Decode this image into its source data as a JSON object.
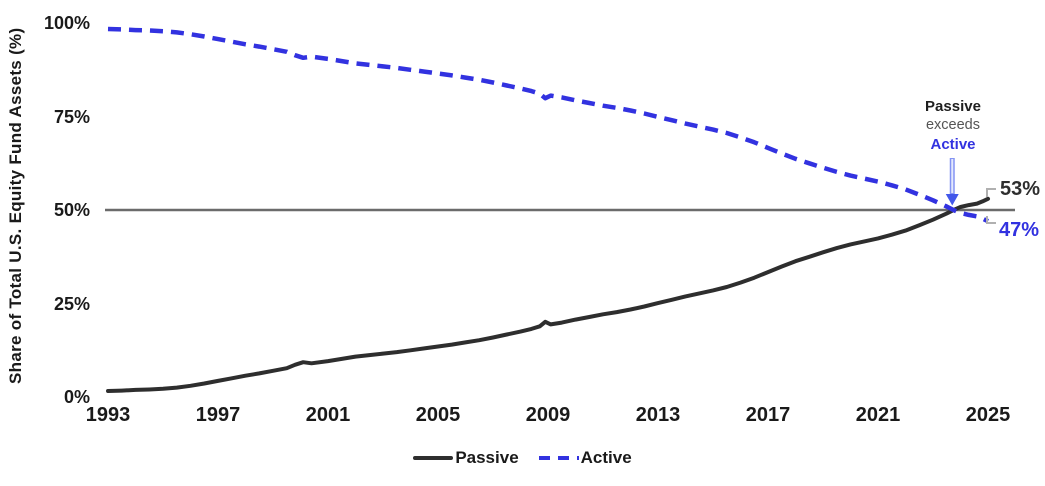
{
  "chart_data": {
    "type": "line",
    "title": "",
    "xlabel": "",
    "ylabel": "Share of Total U.S. Equity Fund Assets (%)",
    "x_tick_labels": [
      "1993",
      "1997",
      "2001",
      "2005",
      "2009",
      "2013",
      "2017",
      "2021",
      "2025"
    ],
    "x_tick_values": [
      1993,
      1997,
      2001,
      2005,
      2009,
      2013,
      2017,
      2021,
      2025
    ],
    "y_tick_labels": [
      "100%",
      "75%",
      "50%",
      "25%",
      "0%"
    ],
    "y_tick_values": [
      100,
      75,
      50,
      25,
      0
    ],
    "x_range": [
      1993,
      2025
    ],
    "y_range": [
      0,
      100
    ],
    "grid": "off",
    "reference_line_y": 50,
    "legend_position": "bottom-center",
    "crossover": {
      "year": 2023.7,
      "value": 50
    },
    "series": [
      {
        "name": "Passive",
        "style": "solid",
        "end_value_label": "53%",
        "points": [
          [
            1993,
            1.6
          ],
          [
            1993.5,
            1.7
          ],
          [
            1994,
            1.9
          ],
          [
            1994.5,
            2.0
          ],
          [
            1995,
            2.2
          ],
          [
            1995.5,
            2.5
          ],
          [
            1996,
            3.0
          ],
          [
            1996.5,
            3.6
          ],
          [
            1997,
            4.3
          ],
          [
            1997.5,
            5.0
          ],
          [
            1998,
            5.7
          ],
          [
            1998.5,
            6.3
          ],
          [
            1999,
            7.0
          ],
          [
            1999.5,
            7.7
          ],
          [
            1999.8,
            8.6
          ],
          [
            2000.1,
            9.3
          ],
          [
            2000.4,
            9.0
          ],
          [
            2001,
            9.6
          ],
          [
            2001.5,
            10.2
          ],
          [
            2002,
            10.8
          ],
          [
            2002.5,
            11.2
          ],
          [
            2003,
            11.6
          ],
          [
            2003.5,
            12.0
          ],
          [
            2004,
            12.5
          ],
          [
            2004.5,
            13.0
          ],
          [
            2005,
            13.5
          ],
          [
            2005.5,
            14.0
          ],
          [
            2006,
            14.6
          ],
          [
            2006.5,
            15.2
          ],
          [
            2007,
            15.9
          ],
          [
            2007.5,
            16.7
          ],
          [
            2008,
            17.5
          ],
          [
            2008.4,
            18.2
          ],
          [
            2008.7,
            18.9
          ],
          [
            2008.9,
            20.1
          ],
          [
            2009.1,
            19.4
          ],
          [
            2009.5,
            19.9
          ],
          [
            2010,
            20.7
          ],
          [
            2010.5,
            21.4
          ],
          [
            2011,
            22.1
          ],
          [
            2011.5,
            22.7
          ],
          [
            2012,
            23.4
          ],
          [
            2012.5,
            24.2
          ],
          [
            2013,
            25.1
          ],
          [
            2013.5,
            26.0
          ],
          [
            2014,
            26.9
          ],
          [
            2014.5,
            27.7
          ],
          [
            2015,
            28.5
          ],
          [
            2015.5,
            29.4
          ],
          [
            2016,
            30.6
          ],
          [
            2016.5,
            31.9
          ],
          [
            2017,
            33.4
          ],
          [
            2017.5,
            34.9
          ],
          [
            2018,
            36.3
          ],
          [
            2018.5,
            37.5
          ],
          [
            2019,
            38.7
          ],
          [
            2019.5,
            39.8
          ],
          [
            2020,
            40.8
          ],
          [
            2020.5,
            41.6
          ],
          [
            2021,
            42.4
          ],
          [
            2021.5,
            43.4
          ],
          [
            2022,
            44.5
          ],
          [
            2022.5,
            45.9
          ],
          [
            2023,
            47.4
          ],
          [
            2023.5,
            49.1
          ],
          [
            2023.8,
            50.2
          ],
          [
            2024,
            50.8
          ],
          [
            2024.3,
            51.3
          ],
          [
            2024.6,
            51.7
          ],
          [
            2024.8,
            52.3
          ],
          [
            2025,
            53.0
          ]
        ]
      },
      {
        "name": "Active",
        "style": "dashed",
        "end_value_label": "47%",
        "points": [
          [
            1993,
            98.4
          ],
          [
            1993.5,
            98.3
          ],
          [
            1994,
            98.1
          ],
          [
            1994.5,
            98.0
          ],
          [
            1995,
            97.8
          ],
          [
            1995.5,
            97.5
          ],
          [
            1996,
            97.0
          ],
          [
            1996.5,
            96.4
          ],
          [
            1997,
            95.7
          ],
          [
            1997.5,
            95.0
          ],
          [
            1998,
            94.3
          ],
          [
            1998.5,
            93.7
          ],
          [
            1999,
            93.0
          ],
          [
            1999.5,
            92.3
          ],
          [
            1999.8,
            91.4
          ],
          [
            2000.1,
            90.7
          ],
          [
            2000.4,
            91.0
          ],
          [
            2001,
            90.4
          ],
          [
            2001.5,
            89.8
          ],
          [
            2002,
            89.2
          ],
          [
            2002.5,
            88.8
          ],
          [
            2003,
            88.4
          ],
          [
            2003.5,
            88.0
          ],
          [
            2004,
            87.5
          ],
          [
            2004.5,
            87.0
          ],
          [
            2005,
            86.5
          ],
          [
            2005.5,
            86.0
          ],
          [
            2006,
            85.4
          ],
          [
            2006.5,
            84.8
          ],
          [
            2007,
            84.1
          ],
          [
            2007.5,
            83.3
          ],
          [
            2008,
            82.5
          ],
          [
            2008.4,
            81.8
          ],
          [
            2008.7,
            81.1
          ],
          [
            2008.9,
            79.9
          ],
          [
            2009.1,
            80.6
          ],
          [
            2009.5,
            80.1
          ],
          [
            2010,
            79.3
          ],
          [
            2010.5,
            78.6
          ],
          [
            2011,
            77.9
          ],
          [
            2011.5,
            77.3
          ],
          [
            2012,
            76.6
          ],
          [
            2012.5,
            75.8
          ],
          [
            2013,
            74.9
          ],
          [
            2013.5,
            74.0
          ],
          [
            2014,
            73.1
          ],
          [
            2014.5,
            72.3
          ],
          [
            2015,
            71.5
          ],
          [
            2015.5,
            70.6
          ],
          [
            2016,
            69.4
          ],
          [
            2016.5,
            68.1
          ],
          [
            2017,
            66.6
          ],
          [
            2017.5,
            65.1
          ],
          [
            2018,
            63.7
          ],
          [
            2018.5,
            62.5
          ],
          [
            2019,
            61.3
          ],
          [
            2019.5,
            60.2
          ],
          [
            2020,
            59.2
          ],
          [
            2020.5,
            58.4
          ],
          [
            2021,
            57.6
          ],
          [
            2021.5,
            56.6
          ],
          [
            2022,
            55.5
          ],
          [
            2022.5,
            54.1
          ],
          [
            2023,
            52.6
          ],
          [
            2023.5,
            50.9
          ],
          [
            2023.8,
            49.8
          ],
          [
            2024,
            49.2
          ],
          [
            2024.3,
            48.7
          ],
          [
            2024.6,
            48.3
          ],
          [
            2024.8,
            47.7
          ],
          [
            2025,
            47.0
          ]
        ]
      }
    ]
  },
  "annotation": {
    "line1": "Passive",
    "line2": "exceeds",
    "line3": "Active"
  },
  "end_labels": {
    "passive": "53%",
    "active": "47%"
  },
  "legend": {
    "passive": "Passive",
    "active": "Active"
  },
  "colors": {
    "passive": "#2e2e2e",
    "active": "#3232e0",
    "reference_line": "#6b6b6b",
    "arrow_head": "#4257ea",
    "arrow_shaft": "#8494f3",
    "arrow_shaft_inner": "#e4e9fd",
    "bracket": "#b0b0b0",
    "gray_text": "#555555"
  }
}
